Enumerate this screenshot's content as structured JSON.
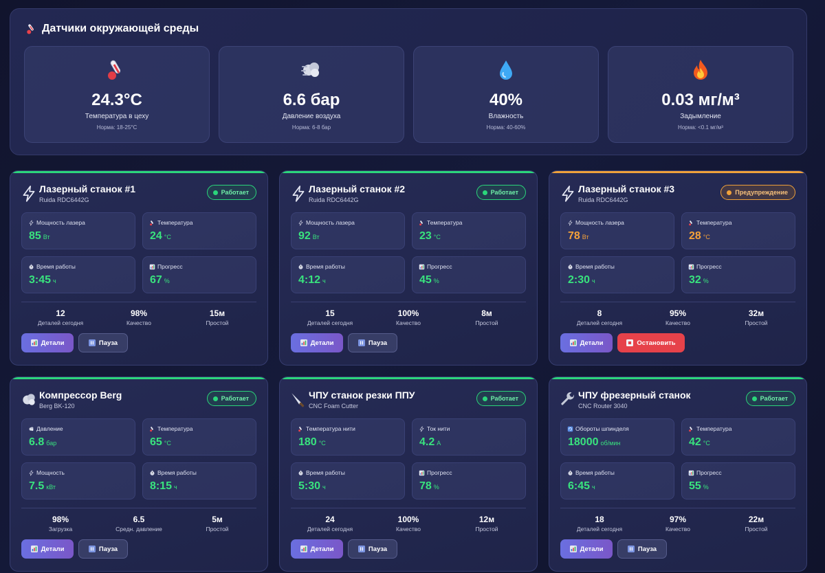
{
  "environment": {
    "title": "Датчики окружающей среды",
    "sensors": [
      {
        "icon": "thermometer-icon",
        "value": "24.3°C",
        "label": "Температура в цеху",
        "norm": "Норма: 18-25°C"
      },
      {
        "icon": "wind-icon",
        "value": "6.6 бар",
        "label": "Давление воздуха",
        "norm": "Норма: 6-8 бар"
      },
      {
        "icon": "droplet-icon",
        "value": "40%",
        "label": "Влажность",
        "norm": "Норма: 40-60%"
      },
      {
        "icon": "fire-icon",
        "value": "0.03 мг/м³",
        "label": "Задымление",
        "norm": "Норма: <0.1 мг/м³"
      }
    ]
  },
  "machines": [
    {
      "name": "Лазерный станок #1",
      "model": "Ruida RDC6442G",
      "icon": "lightning-icon",
      "status": "Работает",
      "status_color": "#2bd67b",
      "metrics": [
        {
          "label": "Мощность лазера",
          "value": "85",
          "unit": "Вт",
          "icon": "lightning-icon"
        },
        {
          "label": "Температура",
          "value": "24",
          "unit": "°C",
          "icon": "thermometer-icon"
        },
        {
          "label": "Время работы",
          "value": "3:45",
          "unit": "ч",
          "icon": "stopwatch-icon"
        },
        {
          "label": "Прогресс",
          "value": "67",
          "unit": "%",
          "icon": "chart-icon"
        }
      ],
      "stats": [
        {
          "value": "12",
          "label": "Деталей сегодня"
        },
        {
          "value": "98%",
          "label": "Качество"
        },
        {
          "value": "15м",
          "label": "Простой"
        }
      ],
      "primary_button": "Детали",
      "secondary_button": "Пауза"
    },
    {
      "name": "Лазерный станок #2",
      "model": "Ruida RDC6442G",
      "icon": "lightning-icon",
      "status": "Работает",
      "status_color": "#2bd67b",
      "metrics": [
        {
          "label": "Мощность лазера",
          "value": "92",
          "unit": "Вт",
          "icon": "lightning-icon"
        },
        {
          "label": "Температура",
          "value": "23",
          "unit": "°C",
          "icon": "thermometer-icon"
        },
        {
          "label": "Время работы",
          "value": "4:12",
          "unit": "ч",
          "icon": "stopwatch-icon"
        },
        {
          "label": "Прогресс",
          "value": "45",
          "unit": "%",
          "icon": "chart-icon"
        }
      ],
      "stats": [
        {
          "value": "15",
          "label": "Деталей сегодня"
        },
        {
          "value": "100%",
          "label": "Качество"
        },
        {
          "value": "8м",
          "label": "Простой"
        }
      ],
      "primary_button": "Детали",
      "secondary_button": "Пауза"
    },
    {
      "name": "Лазерный станок #3",
      "model": "Ruida RDC6442G",
      "icon": "lightning-icon",
      "status": "Предупреждение",
      "status_color": "#f0a13a",
      "metrics": [
        {
          "label": "Мощность лазера",
          "value": "78",
          "unit": "Вт",
          "icon": "lightning-icon"
        },
        {
          "label": "Температура",
          "value": "28",
          "unit": "°C",
          "icon": "thermometer-icon"
        },
        {
          "label": "Время работы",
          "value": "2:30",
          "unit": "ч",
          "icon": "stopwatch-icon"
        },
        {
          "label": "Прогресс",
          "value": "32",
          "unit": "%",
          "icon": "chart-icon"
        }
      ],
      "stats": [
        {
          "value": "8",
          "label": "Деталей сегодня"
        },
        {
          "value": "95%",
          "label": "Качество"
        },
        {
          "value": "32м",
          "label": "Простой"
        }
      ],
      "primary_button": "Детали",
      "secondary_button": "Остановить"
    },
    {
      "name": "Компрессор Berg",
      "model": "Berg BK-120",
      "icon": "wind-icon",
      "status": "Работает",
      "status_color": "#2bd67b",
      "metrics": [
        {
          "label": "Давление",
          "value": "6.8",
          "unit": "бар",
          "icon": "wind-icon"
        },
        {
          "label": "Температура",
          "value": "65",
          "unit": "°C",
          "icon": "thermometer-icon"
        },
        {
          "label": "Мощность",
          "value": "7.5",
          "unit": "кВт",
          "icon": "lightning-icon"
        },
        {
          "label": "Время работы",
          "value": "8:15",
          "unit": "ч",
          "icon": "stopwatch-icon"
        }
      ],
      "stats": [
        {
          "value": "98%",
          "label": "Загрузка"
        },
        {
          "value": "6.5",
          "label": "Средн. давление"
        },
        {
          "value": "5м",
          "label": "Простой"
        }
      ],
      "primary_button": "Детали",
      "secondary_button": "Пауза"
    },
    {
      "name": "ЧПУ станок резки ППУ",
      "model": "CNC Foam Cutter",
      "icon": "knife-icon",
      "status": "Работает",
      "status_color": "#2bd67b",
      "metrics": [
        {
          "label": "Температура нити",
          "value": "180",
          "unit": "°C",
          "icon": "thermometer-icon"
        },
        {
          "label": "Ток нити",
          "value": "4.2",
          "unit": "А",
          "icon": "lightning-icon"
        },
        {
          "label": "Время работы",
          "value": "5:30",
          "unit": "ч",
          "icon": "stopwatch-icon"
        },
        {
          "label": "Прогресс",
          "value": "78",
          "unit": "%",
          "icon": "chart-icon"
        }
      ],
      "stats": [
        {
          "value": "24",
          "label": "Деталей сегодня"
        },
        {
          "value": "100%",
          "label": "Качество"
        },
        {
          "value": "12м",
          "label": "Простой"
        }
      ],
      "primary_button": "Детали",
      "secondary_button": "Пауза"
    },
    {
      "name": "ЧПУ фрезерный станок",
      "model": "CNC Router 3040",
      "icon": "wrench-icon",
      "status": "Работает",
      "status_color": "#2bd67b",
      "metrics": [
        {
          "label": "Обороты шпинделя",
          "value": "18000",
          "unit": "об/мин",
          "icon": "rotate-icon"
        },
        {
          "label": "Температура",
          "value": "42",
          "unit": "°C",
          "icon": "thermometer-icon"
        },
        {
          "label": "Время работы",
          "value": "6:45",
          "unit": "ч",
          "icon": "stopwatch-icon"
        },
        {
          "label": "Прогресс",
          "value": "55",
          "unit": "%",
          "icon": "chart-icon"
        }
      ],
      "stats": [
        {
          "value": "18",
          "label": "Деталей сегодня"
        },
        {
          "value": "97%",
          "label": "Качество"
        },
        {
          "value": "22м",
          "label": "Простой"
        }
      ],
      "primary_button": "Детали",
      "secondary_button": "Пауза"
    }
  ]
}
